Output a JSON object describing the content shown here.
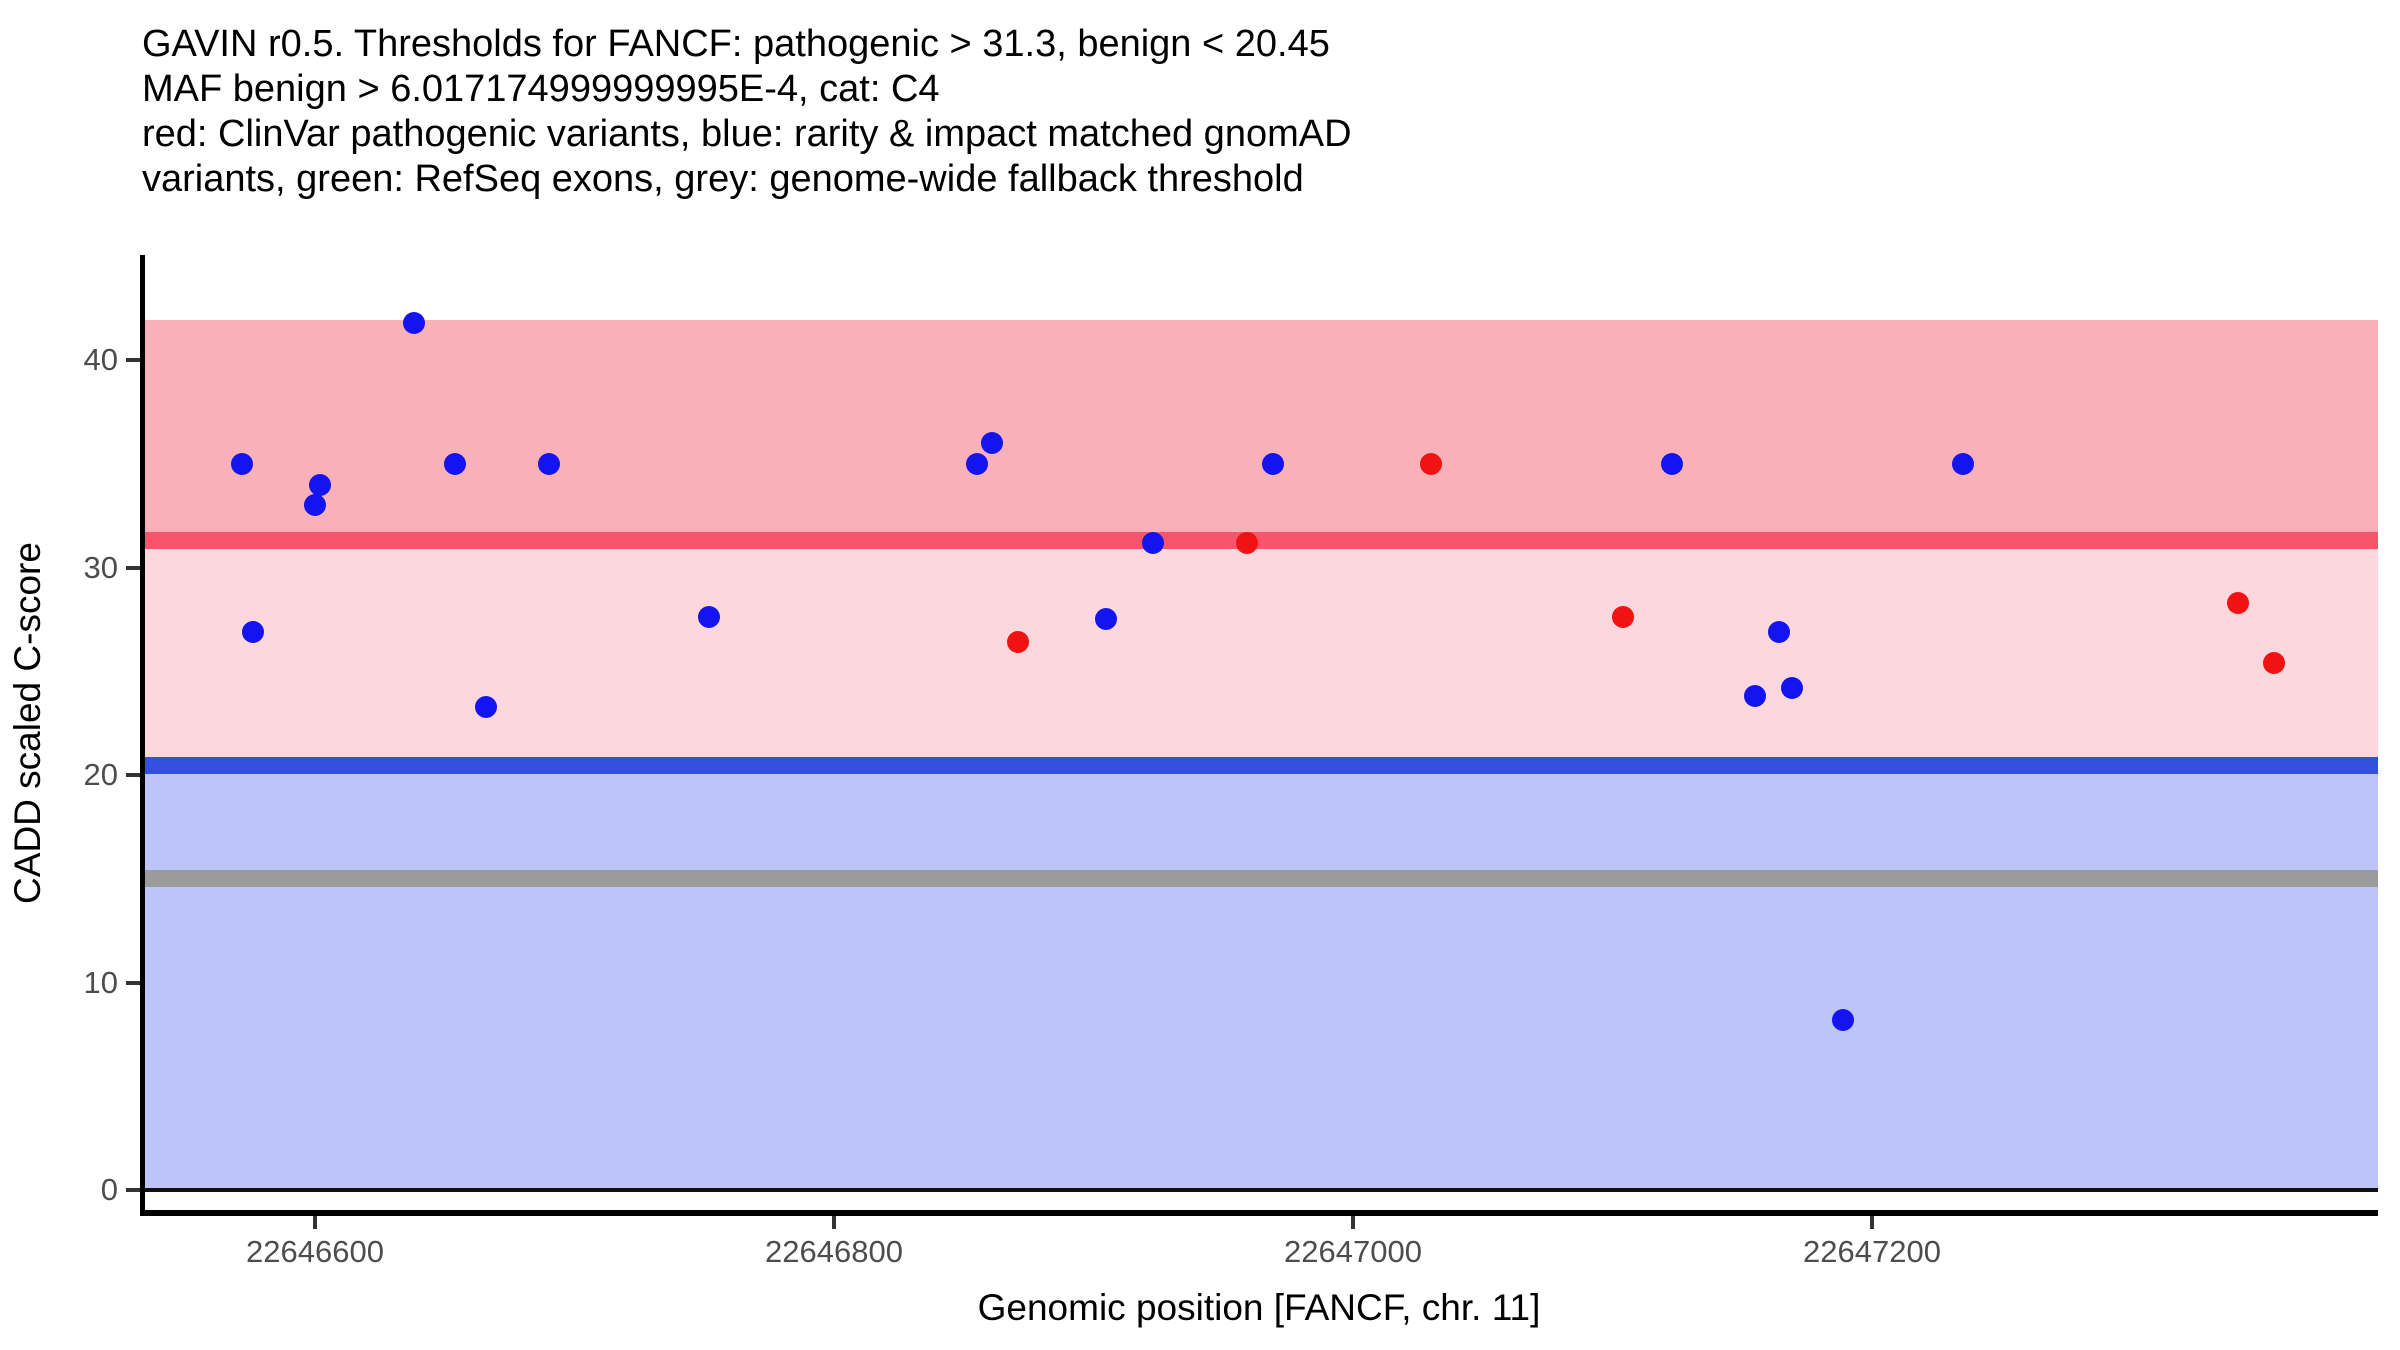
{
  "colors": {
    "pathogenic_band": "#f9b1b9",
    "intermediate_band": "#fcd7dd",
    "benign_band": "#bdc4f7",
    "pathogenic_line": "#f5566b",
    "benign_line": "#3450e0",
    "fallback_line": "#9b9b9b",
    "zero_line": "#111111",
    "axis": "#000000",
    "tick": "#333333",
    "tick_text": "#4d4d4d",
    "clinvar_red": "#f11212",
    "gnomad_blue": "#1414f0"
  },
  "chart_data": {
    "type": "scatter",
    "title_lines": [
      "GAVIN r0.5. Thresholds for FANCF: pathogenic > 31.3, benign < 20.45",
      "MAF benign > 6.017174999999995E-4, cat: C4",
      "red: ClinVar pathogenic variants, blue: rarity & impact matched gnomAD",
      "variants, green: RefSeq exons, grey: genome-wide fallback threshold"
    ],
    "xlabel": "Genomic position [FANCF, chr. 11]",
    "ylabel": "CADD scaled C-score",
    "x_ticks": [
      22646600,
      22646800,
      22647000,
      22647200
    ],
    "y_ticks": [
      0,
      10,
      20,
      30,
      40
    ],
    "xlim": [
      22646532,
      22647395
    ],
    "ylim": [
      -1,
      45
    ],
    "grid": false,
    "legend_position": "none",
    "thresholds": [
      {
        "key": "pathogenic",
        "label": "pathogenic threshold",
        "value": 31.3,
        "color_ref": "pathogenic_line"
      },
      {
        "key": "benign",
        "label": "benign threshold",
        "value": 20.45,
        "color_ref": "benign_line"
      },
      {
        "key": "fallback",
        "label": "genome-wide fallback threshold",
        "value": 15,
        "color_ref": "fallback_line"
      },
      {
        "key": "zero",
        "label": "zero baseline",
        "value": 0,
        "color_ref": "zero_line"
      }
    ],
    "bands": [
      {
        "key": "pathogenic-region",
        "from": 31.3,
        "to": 41.93,
        "color_ref": "pathogenic_band"
      },
      {
        "key": "intermediate-region",
        "from": 20.45,
        "to": 31.3,
        "color_ref": "intermediate_band"
      },
      {
        "key": "benign-region",
        "from": 0,
        "to": 20.45,
        "color_ref": "benign_band"
      }
    ],
    "series": [
      {
        "name": "ClinVar pathogenic variants",
        "key": "clinvar-pathogenic",
        "color_ref": "clinvar_red",
        "points": [
          {
            "pos": 22646871,
            "cadd": 26.4
          },
          {
            "pos": 22646959,
            "cadd": 31.2
          },
          {
            "pos": 22647030,
            "cadd": 35
          },
          {
            "pos": 22647104,
            "cadd": 27.6
          },
          {
            "pos": 22647341,
            "cadd": 28.3
          },
          {
            "pos": 22647355,
            "cadd": 25.4
          }
        ]
      },
      {
        "name": "rarity & impact matched gnomAD variants",
        "key": "gnomad-matched",
        "color_ref": "gnomad_blue",
        "points": [
          {
            "pos": 22646572,
            "cadd": 35
          },
          {
            "pos": 22646576,
            "cadd": 26.9
          },
          {
            "pos": 22646600,
            "cadd": 33
          },
          {
            "pos": 22646602,
            "cadd": 34
          },
          {
            "pos": 22646638,
            "cadd": 41.8
          },
          {
            "pos": 22646654,
            "cadd": 35
          },
          {
            "pos": 22646666,
            "cadd": 23.3
          },
          {
            "pos": 22646690,
            "cadd": 35
          },
          {
            "pos": 22646752,
            "cadd": 27.6
          },
          {
            "pos": 22646855,
            "cadd": 35
          },
          {
            "pos": 22646861,
            "cadd": 36
          },
          {
            "pos": 22646905,
            "cadd": 27.5
          },
          {
            "pos": 22646923,
            "cadd": 31.2
          },
          {
            "pos": 22646969,
            "cadd": 35
          },
          {
            "pos": 22647123,
            "cadd": 35
          },
          {
            "pos": 22647155,
            "cadd": 23.8
          },
          {
            "pos": 22647164,
            "cadd": 26.9
          },
          {
            "pos": 22647169,
            "cadd": 24.2
          },
          {
            "pos": 22647189,
            "cadd": 8.2
          },
          {
            "pos": 22647235,
            "cadd": 35
          }
        ]
      }
    ]
  }
}
